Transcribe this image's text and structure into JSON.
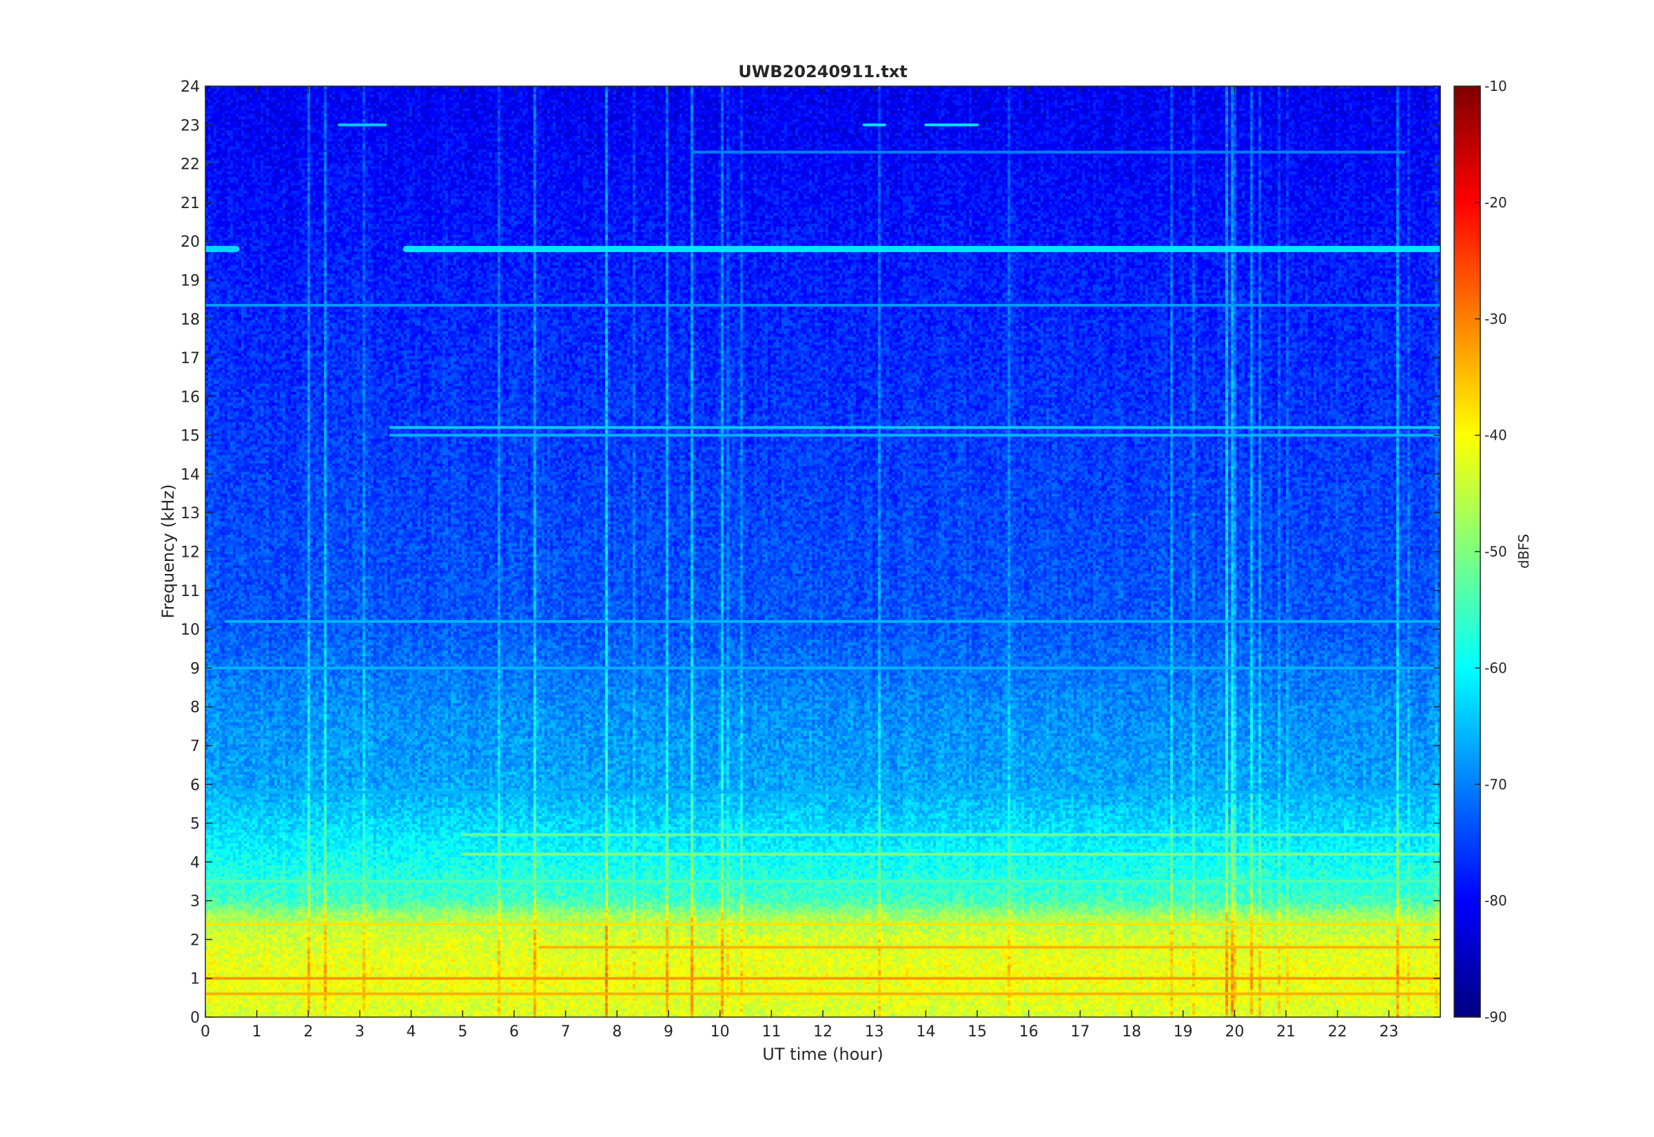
{
  "chart_data": {
    "type": "heatmap",
    "title": "UWB20240911.txt",
    "xlabel": "UT time (hour)",
    "ylabel": "Frequency (kHz)",
    "xlim": [
      0,
      24
    ],
    "ylim": [
      0,
      24
    ],
    "x_ticks": [
      0,
      1,
      2,
      3,
      4,
      5,
      6,
      7,
      8,
      9,
      10,
      11,
      12,
      13,
      14,
      15,
      16,
      17,
      18,
      19,
      20,
      21,
      22,
      23
    ],
    "y_ticks": [
      0,
      1,
      2,
      3,
      4,
      5,
      6,
      7,
      8,
      9,
      10,
      11,
      12,
      13,
      14,
      15,
      16,
      17,
      18,
      19,
      20,
      21,
      22,
      23,
      24
    ],
    "colorbar": {
      "label": "dBFS",
      "colormap": "jet",
      "range": [
        -90,
        -10
      ],
      "ticks": [
        -90,
        -80,
        -70,
        -60,
        -50,
        -40,
        -30,
        -20,
        -10
      ]
    },
    "background_level_profile": [
      {
        "freq_khz": 0.0,
        "dbfs": -44
      },
      {
        "freq_khz": 1.0,
        "dbfs": -42
      },
      {
        "freq_khz": 2.0,
        "dbfs": -44
      },
      {
        "freq_khz": 2.6,
        "dbfs": -48
      },
      {
        "freq_khz": 3.0,
        "dbfs": -56
      },
      {
        "freq_khz": 4.0,
        "dbfs": -60
      },
      {
        "freq_khz": 5.0,
        "dbfs": -64
      },
      {
        "freq_khz": 6.0,
        "dbfs": -68
      },
      {
        "freq_khz": 8.0,
        "dbfs": -70
      },
      {
        "freq_khz": 10.0,
        "dbfs": -74
      },
      {
        "freq_khz": 14.0,
        "dbfs": -76
      },
      {
        "freq_khz": 18.0,
        "dbfs": -78
      },
      {
        "freq_khz": 21.0,
        "dbfs": -80
      },
      {
        "freq_khz": 24.0,
        "dbfs": -82
      }
    ],
    "narrowband_lines": [
      {
        "freq_khz": 19.8,
        "start_hour": 3.9,
        "end_hour": 24.0,
        "dbfs": -62
      },
      {
        "freq_khz": 19.8,
        "start_hour": 0.0,
        "end_hour": 0.6,
        "dbfs": -63
      },
      {
        "freq_khz": 18.35,
        "start_hour": 0.0,
        "end_hour": 24.0,
        "dbfs": -68
      },
      {
        "freq_khz": 15.2,
        "start_hour": 3.6,
        "end_hour": 24.0,
        "dbfs": -64
      },
      {
        "freq_khz": 15.0,
        "start_hour": 3.6,
        "end_hour": 24.0,
        "dbfs": -66
      },
      {
        "freq_khz": 10.2,
        "start_hour": 0.4,
        "end_hour": 24.0,
        "dbfs": -66
      },
      {
        "freq_khz": 9.0,
        "start_hour": 0.0,
        "end_hour": 24.0,
        "dbfs": -66
      },
      {
        "freq_khz": 5.8,
        "start_hour": 0.5,
        "end_hour": 24.0,
        "dbfs": -66
      },
      {
        "freq_khz": 4.7,
        "start_hour": 5.0,
        "end_hour": 24.0,
        "dbfs": -52
      },
      {
        "freq_khz": 4.2,
        "start_hour": 5.0,
        "end_hour": 24.0,
        "dbfs": -50
      },
      {
        "freq_khz": 3.5,
        "start_hour": 0.0,
        "end_hour": 24.0,
        "dbfs": -54
      },
      {
        "freq_khz": 2.4,
        "start_hour": 0.0,
        "end_hour": 24.0,
        "dbfs": -38
      },
      {
        "freq_khz": 1.8,
        "start_hour": 6.5,
        "end_hour": 24.0,
        "dbfs": -34
      },
      {
        "freq_khz": 1.0,
        "start_hour": 0.0,
        "end_hour": 24.0,
        "dbfs": -32
      },
      {
        "freq_khz": 0.6,
        "start_hour": 0.0,
        "end_hour": 24.0,
        "dbfs": -34
      },
      {
        "freq_khz": 22.3,
        "start_hour": 9.5,
        "end_hour": 23.3,
        "dbfs": -70
      },
      {
        "freq_khz": 23.0,
        "start_hour": 12.8,
        "end_hour": 13.2,
        "dbfs": -62
      },
      {
        "freq_khz": 23.0,
        "start_hour": 14.0,
        "end_hour": 15.0,
        "dbfs": -62
      },
      {
        "freq_khz": 23.0,
        "start_hour": 2.6,
        "end_hour": 3.5,
        "dbfs": -64
      }
    ]
  }
}
